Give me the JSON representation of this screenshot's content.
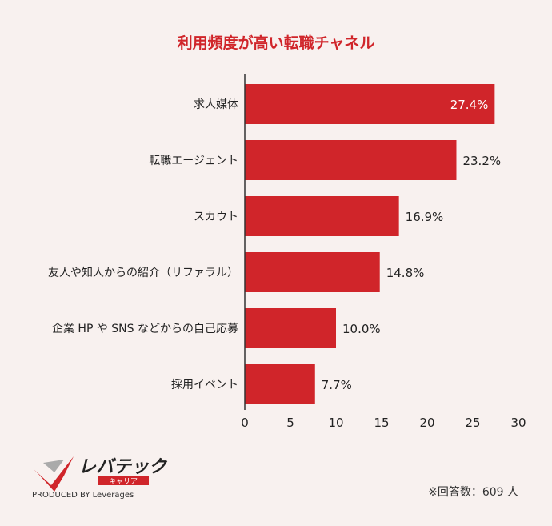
{
  "colors": {
    "bar": "#d0252a",
    "title": "#d0252a",
    "background": "#f8f1ef",
    "axis": "#333333"
  },
  "chart_data": {
    "type": "bar",
    "orientation": "horizontal",
    "title": "利用頻度が高い転職チャネル",
    "categories": [
      "求人媒体",
      "転職エージェント",
      "スカウト",
      "友人や知人からの紹介（リファラル）",
      "企業 HP や SNS などからの自己応募",
      "採用イベント"
    ],
    "values": [
      27.4,
      23.2,
      16.9,
      14.8,
      10.0,
      7.7
    ],
    "value_labels": [
      "27.4%",
      "23.2%",
      "16.9%",
      "14.8%",
      "10.0%",
      "7.7%"
    ],
    "xlim": [
      0,
      30
    ],
    "xticks": [
      "0",
      "5",
      "10",
      "15",
      "20",
      "25",
      "30"
    ],
    "grid": false,
    "note": "※回答数：609 人"
  },
  "logo": {
    "brand": "レバテック",
    "sub": "キャリア",
    "produced": "PRODUCED BY Leverages"
  }
}
